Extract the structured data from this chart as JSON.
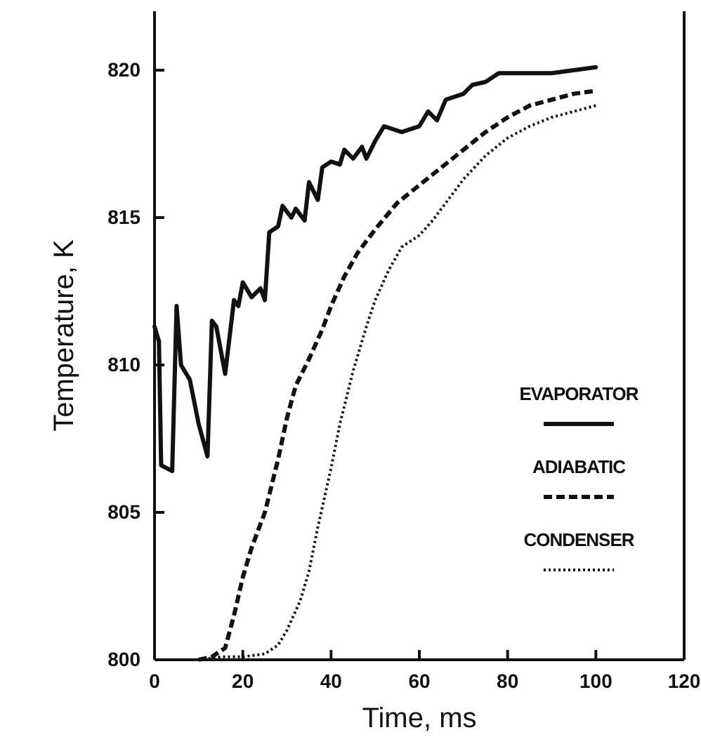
{
  "chart_data": {
    "type": "line",
    "xlabel": "Time, ms",
    "ylabel": "Temperature, K",
    "xlim": [
      0,
      120
    ],
    "xticks": [
      0,
      20,
      40,
      60,
      80,
      100,
      120
    ],
    "ylim": [
      800,
      822
    ],
    "yticks": [
      800,
      805,
      810,
      815,
      820
    ],
    "grid": false,
    "legend": "right",
    "marker": "none",
    "series": [
      {
        "name": "EVAPORATOR",
        "color": "#111111",
        "line_style": "solid",
        "x": [
          0,
          1,
          1.5,
          4,
          5,
          6,
          8,
          10,
          12,
          13,
          14,
          16,
          18,
          19,
          20,
          22,
          24,
          25,
          26,
          28,
          29,
          31,
          32,
          34,
          35,
          37,
          38,
          40,
          42,
          43,
          45,
          47,
          48,
          50,
          52,
          54,
          56,
          60,
          62,
          64,
          66,
          70,
          72,
          75,
          78,
          85,
          90,
          95,
          100
        ],
        "values": [
          811.3,
          810.8,
          806.6,
          806.4,
          812,
          810,
          809.5,
          808,
          806.9,
          811.5,
          811.3,
          809.7,
          812.2,
          812,
          812.8,
          812.3,
          812.6,
          812.2,
          814.5,
          814.7,
          815.4,
          815,
          815.3,
          814.9,
          816.2,
          815.6,
          816.7,
          816.9,
          816.8,
          817.3,
          817,
          817.4,
          817,
          817.6,
          818.1,
          818,
          817.9,
          818.1,
          818.6,
          818.3,
          819,
          819.2,
          819.5,
          819.6,
          819.9,
          819.9,
          819.9,
          820,
          820.1
        ]
      },
      {
        "name": "ADIABATIC",
        "color": "#111111",
        "line_style": "dashed",
        "x": [
          10,
          13,
          16,
          18,
          20,
          22,
          25,
          28,
          30,
          32,
          35,
          38,
          40,
          43,
          46,
          50,
          55,
          60,
          65,
          70,
          75,
          80,
          85,
          90,
          95,
          100
        ],
        "values": [
          800,
          800.1,
          800.4,
          801.5,
          802.8,
          803.8,
          805,
          806.8,
          808.2,
          809.3,
          810.2,
          811.2,
          812,
          813,
          813.8,
          814.6,
          815.5,
          816.1,
          816.7,
          817.3,
          817.9,
          818.4,
          818.8,
          819,
          819.2,
          819.3
        ]
      },
      {
        "name": "CONDENSER",
        "color": "#111111",
        "line_style": "dotted",
        "x": [
          10,
          15,
          20,
          25,
          28,
          30,
          33,
          35,
          37,
          40,
          42,
          45,
          48,
          50,
          53,
          56,
          60,
          63,
          67,
          70,
          75,
          80,
          85,
          90,
          95,
          100
        ],
        "values": [
          800,
          800.1,
          800.1,
          800.2,
          800.5,
          801,
          802,
          803,
          804.5,
          806.5,
          808,
          809.8,
          811.3,
          812.2,
          813.2,
          814,
          814.4,
          814.9,
          815.7,
          816.3,
          817.1,
          817.7,
          818.1,
          818.4,
          818.6,
          818.8
        ]
      }
    ]
  }
}
